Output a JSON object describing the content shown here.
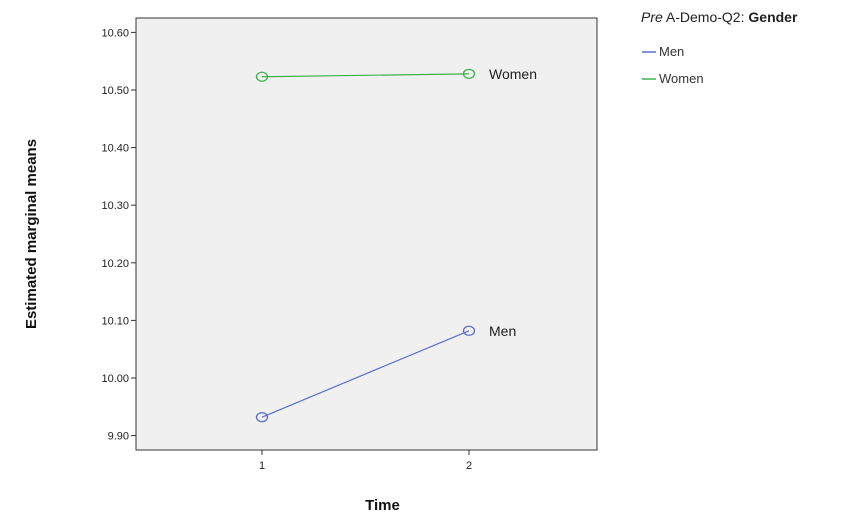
{
  "chart_data": {
    "type": "line",
    "title": "",
    "xlabel": "Time",
    "ylabel": "Estimated marginal means",
    "x": [
      "1",
      "2"
    ],
    "ylim": [
      9.875,
      10.625
    ],
    "yticks": [
      "9.90",
      "10.00",
      "10.10",
      "10.20",
      "10.30",
      "10.40",
      "10.50",
      "10.60"
    ],
    "grid": false,
    "plot_background": "#f0f0f0",
    "legend": {
      "position": "top-right",
      "title_prefix": "Pre",
      "title_middle": " A-Demo-Q2: ",
      "title_bold": "Gender",
      "entries": [
        "Men",
        "Women"
      ]
    },
    "series": [
      {
        "name": "Men",
        "values": [
          9.932,
          10.082
        ],
        "color": "#5a6fc8",
        "label": "Men"
      },
      {
        "name": "Women",
        "values": [
          10.523,
          10.528
        ],
        "color": "#3cb44a",
        "label": "Women"
      }
    ]
  }
}
